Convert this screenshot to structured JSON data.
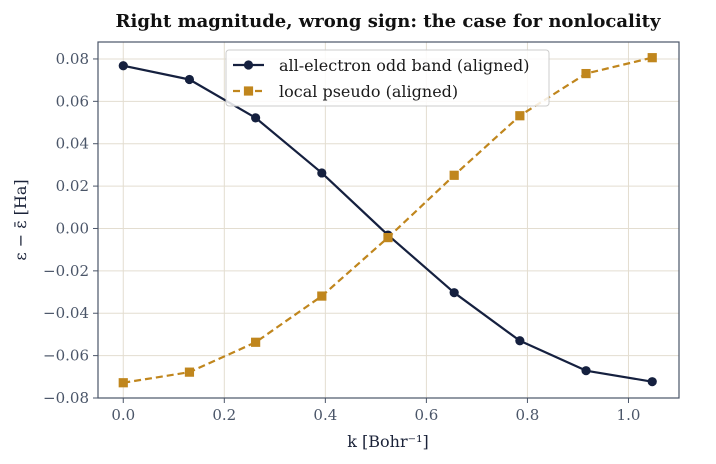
{
  "chart_data": {
    "type": "line",
    "title": "Right magnitude, wrong sign: the case for nonlocality",
    "xlabel": "k  [Bohr⁻¹]",
    "ylabel": "ε − ε̄  [Ha]",
    "xlim": [
      -0.05,
      1.1
    ],
    "ylim": [
      -0.08,
      0.088
    ],
    "xticks": [
      0.0,
      0.2,
      0.4,
      0.6,
      0.8,
      1.0
    ],
    "xtick_labels": [
      "0.0",
      "0.2",
      "0.4",
      "0.6",
      "0.8",
      "1.0"
    ],
    "yticks": [
      -0.08,
      -0.06,
      -0.04,
      -0.02,
      0.0,
      0.02,
      0.04,
      0.06,
      0.08
    ],
    "ytick_labels": [
      "−0.08",
      "−0.06",
      "−0.04",
      "−0.02",
      "0.00",
      "0.02",
      "0.04",
      "0.06",
      "0.08"
    ],
    "grid": true,
    "legend_position": "top-center",
    "x": [
      0.0,
      0.131,
      0.262,
      0.393,
      0.524,
      0.655,
      0.785,
      0.916,
      1.047
    ],
    "series": [
      {
        "name": "all-electron odd band (aligned)",
        "values": [
          0.0768,
          0.0703,
          0.0522,
          0.0262,
          -0.0031,
          -0.0303,
          -0.053,
          -0.0671,
          -0.0723
        ],
        "color": "#15203f",
        "line": "solid",
        "marker": "circle"
      },
      {
        "name": "local pseudo (aligned)",
        "values": [
          -0.0728,
          -0.0678,
          -0.0537,
          -0.0319,
          -0.0043,
          0.0251,
          0.0532,
          0.0731,
          0.0806
        ],
        "color": "#c0861d",
        "line": "dashed",
        "marker": "square"
      }
    ]
  }
}
